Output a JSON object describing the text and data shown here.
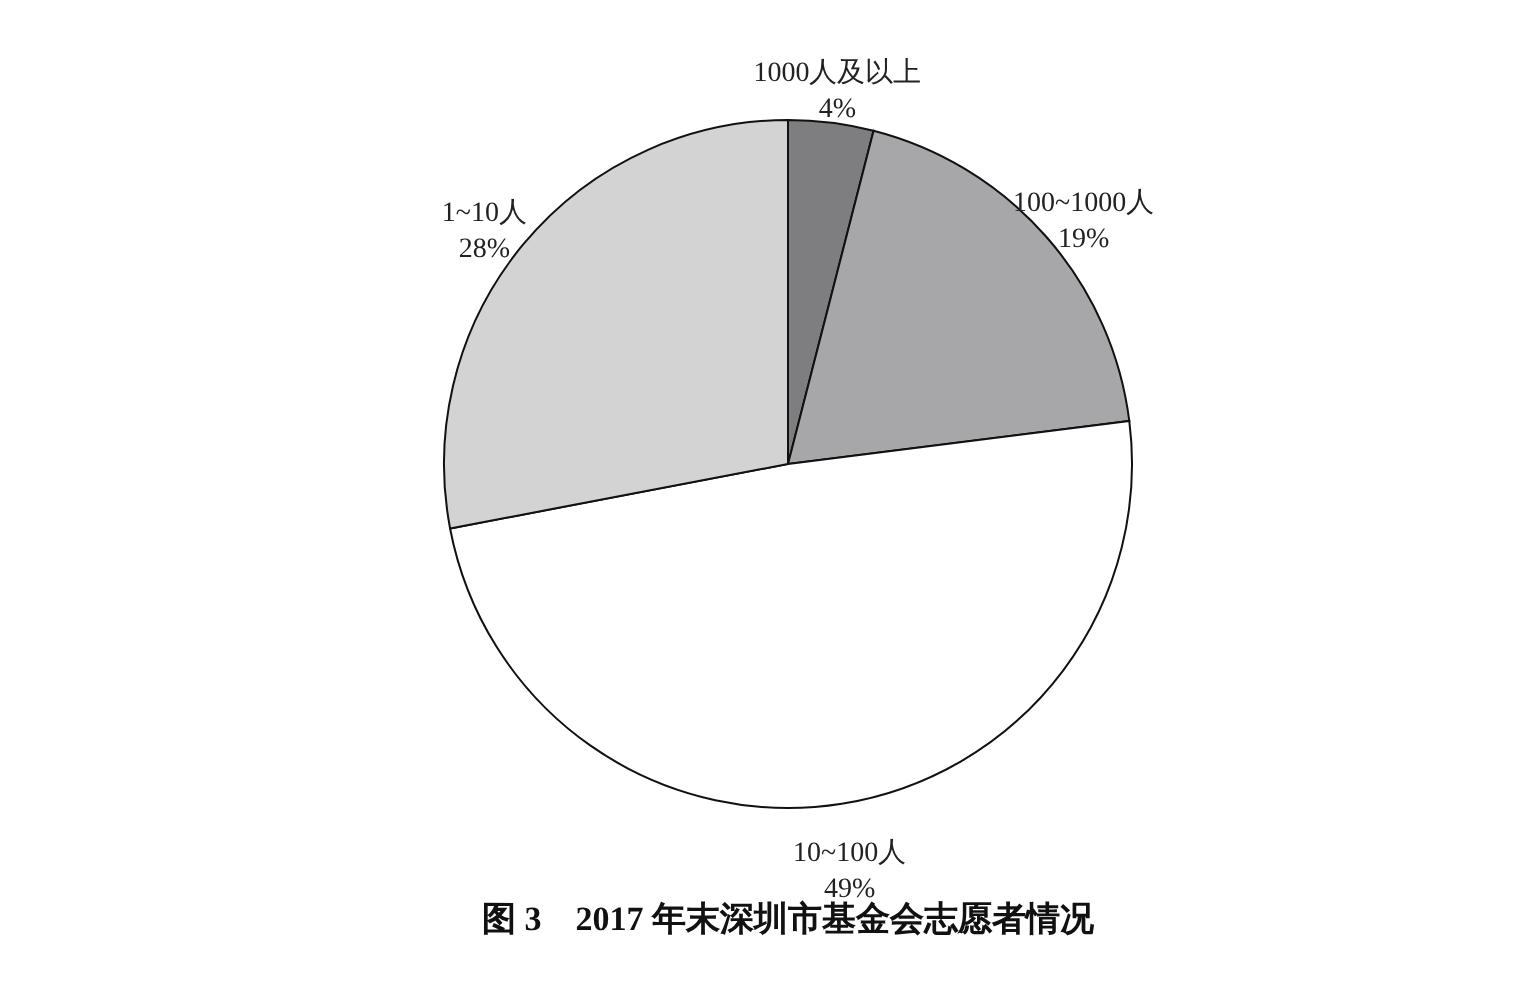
{
  "chart_data": {
    "type": "pie",
    "title": "图 3　2017 年末深圳市基金会志愿者情况",
    "categories": [
      "1000人及以上",
      "100~1000人",
      "10~100人",
      "1~10人"
    ],
    "values": [
      4,
      19,
      49,
      28
    ],
    "value_labels": [
      "4%",
      "19%",
      "49%",
      "28%"
    ],
    "colors": [
      "#7e7e80",
      "#a7a7a9",
      "#ffffff",
      "#d3d3d3"
    ]
  }
}
